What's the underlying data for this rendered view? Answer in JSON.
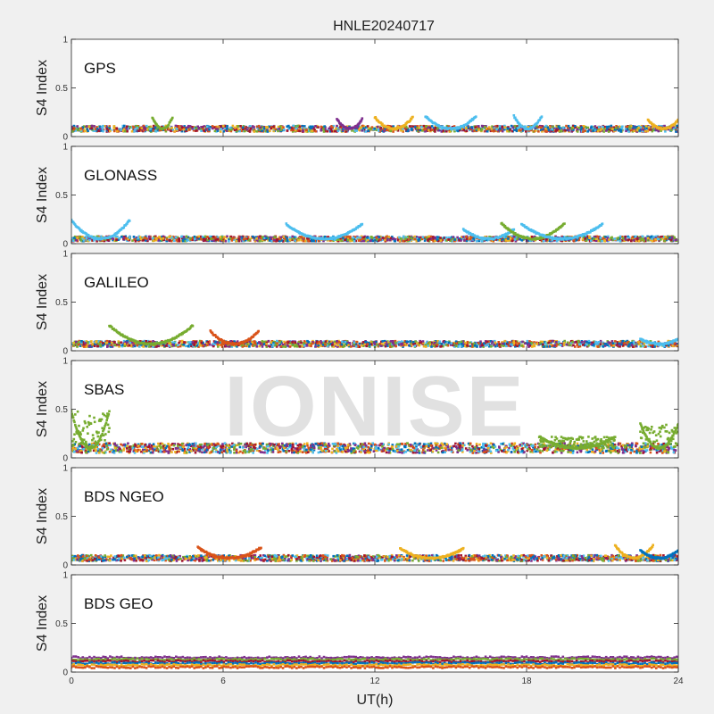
{
  "figure": {
    "title": "HNLE20240717",
    "watermark": "IONISE",
    "xlabel": "UT(h)"
  },
  "colors": {
    "series": [
      "#0072BD",
      "#D95319",
      "#EDB120",
      "#7E2F8E",
      "#77AC30",
      "#4DBEEE",
      "#A2142F"
    ],
    "axes_background": "#ffffff",
    "figure_background": "#f0f0f0"
  },
  "chart_data": [
    {
      "type": "scatter",
      "panel_label": "GPS",
      "ylabel": "S4 Index",
      "xlim": [
        0,
        24
      ],
      "ylim": [
        0,
        1
      ],
      "xticks": [
        "0",
        "6",
        "12",
        "18",
        "24"
      ],
      "yticks": [
        "0",
        "0.5",
        "1"
      ],
      "baseline": 0.08,
      "spread": 0.03,
      "arcs": [
        {
          "x0": 3.2,
          "x1": 4.0,
          "peak": 0.2,
          "color": 4
        },
        {
          "x0": 10.5,
          "x1": 11.5,
          "peak": 0.18,
          "color": 3
        },
        {
          "x0": 12.0,
          "x1": 13.5,
          "peak": 0.2,
          "color": 2
        },
        {
          "x0": 14.0,
          "x1": 16.0,
          "peak": 0.21,
          "color": 5
        },
        {
          "x0": 17.5,
          "x1": 18.6,
          "peak": 0.21,
          "color": 5
        },
        {
          "x0": 22.8,
          "x1": 24.0,
          "peak": 0.17,
          "color": 2
        }
      ]
    },
    {
      "type": "scatter",
      "panel_label": "GLONASS",
      "ylabel": "S4 Index",
      "xlim": [
        0,
        24
      ],
      "ylim": [
        0,
        1
      ],
      "xticks": [
        "0",
        "6",
        "12",
        "18",
        "24"
      ],
      "yticks": [
        "0",
        "0.5",
        "1"
      ],
      "baseline": 0.05,
      "spread": 0.025,
      "arcs": [
        {
          "x0": 0.0,
          "x1": 2.3,
          "peak": 0.24,
          "color": 5
        },
        {
          "x0": 8.5,
          "x1": 11.5,
          "peak": 0.2,
          "color": 5
        },
        {
          "x0": 15.5,
          "x1": 17.5,
          "peak": 0.15,
          "color": 5
        },
        {
          "x0": 17.0,
          "x1": 19.5,
          "peak": 0.21,
          "color": 4
        },
        {
          "x0": 17.8,
          "x1": 21.0,
          "peak": 0.2,
          "color": 5
        }
      ]
    },
    {
      "type": "scatter",
      "panel_label": "GALILEO",
      "ylabel": "S4 Index",
      "xlim": [
        0,
        24
      ],
      "ylim": [
        0,
        1
      ],
      "xticks": [
        "0",
        "6",
        "12",
        "18",
        "24"
      ],
      "yticks": [
        "0",
        "0.5",
        "1"
      ],
      "baseline": 0.07,
      "spread": 0.03,
      "arcs": [
        {
          "x0": 1.5,
          "x1": 4.8,
          "peak": 0.26,
          "color": 4
        },
        {
          "x0": 5.5,
          "x1": 7.4,
          "peak": 0.2,
          "color": 1
        },
        {
          "x0": 22.5,
          "x1": 24.0,
          "peak": 0.12,
          "color": 5
        }
      ]
    },
    {
      "type": "scatter",
      "panel_label": "SBAS",
      "ylabel": "S4 Index",
      "xlim": [
        0,
        24
      ],
      "ylim": [
        0,
        1
      ],
      "xticks": [
        "0",
        "6",
        "12",
        "18",
        "24"
      ],
      "yticks": [
        "0",
        "0.5",
        "1"
      ],
      "baseline": 0.1,
      "spread": 0.05,
      "arcs": [
        {
          "x0": 0.0,
          "x1": 1.5,
          "peak": 0.48,
          "color": 4
        },
        {
          "x0": 18.5,
          "x1": 21.5,
          "peak": 0.22,
          "color": 4
        },
        {
          "x0": 22.5,
          "x1": 24.0,
          "peak": 0.35,
          "color": 4
        }
      ]
    },
    {
      "type": "scatter",
      "panel_label": "BDS NGEO",
      "ylabel": "S4 Index",
      "xlim": [
        0,
        24
      ],
      "ylim": [
        0,
        1
      ],
      "xticks": [
        "0",
        "6",
        "12",
        "18",
        "24"
      ],
      "yticks": [
        "0",
        "0.5",
        "1"
      ],
      "baseline": 0.07,
      "spread": 0.03,
      "arcs": [
        {
          "x0": 5.0,
          "x1": 7.5,
          "peak": 0.18,
          "color": 1
        },
        {
          "x0": 13.0,
          "x1": 15.5,
          "peak": 0.17,
          "color": 2
        },
        {
          "x0": 21.5,
          "x1": 23.0,
          "peak": 0.2,
          "color": 2
        },
        {
          "x0": 22.5,
          "x1": 24.0,
          "peak": 0.15,
          "color": 0
        }
      ]
    },
    {
      "type": "scatter",
      "panel_label": "BDS GEO",
      "ylabel": "S4 Index",
      "xlim": [
        0,
        24
      ],
      "ylim": [
        0,
        1
      ],
      "xticks": [
        "0",
        "6",
        "12",
        "18",
        "24"
      ],
      "yticks": [
        "0",
        "0.5",
        "1"
      ],
      "levels": [
        {
          "y": 0.15,
          "color": 3
        },
        {
          "y": 0.13,
          "color": 4
        },
        {
          "y": 0.11,
          "color": 6
        },
        {
          "y": 0.09,
          "color": 0
        },
        {
          "y": 0.07,
          "color": 2
        },
        {
          "y": 0.05,
          "color": 1
        }
      ]
    }
  ]
}
